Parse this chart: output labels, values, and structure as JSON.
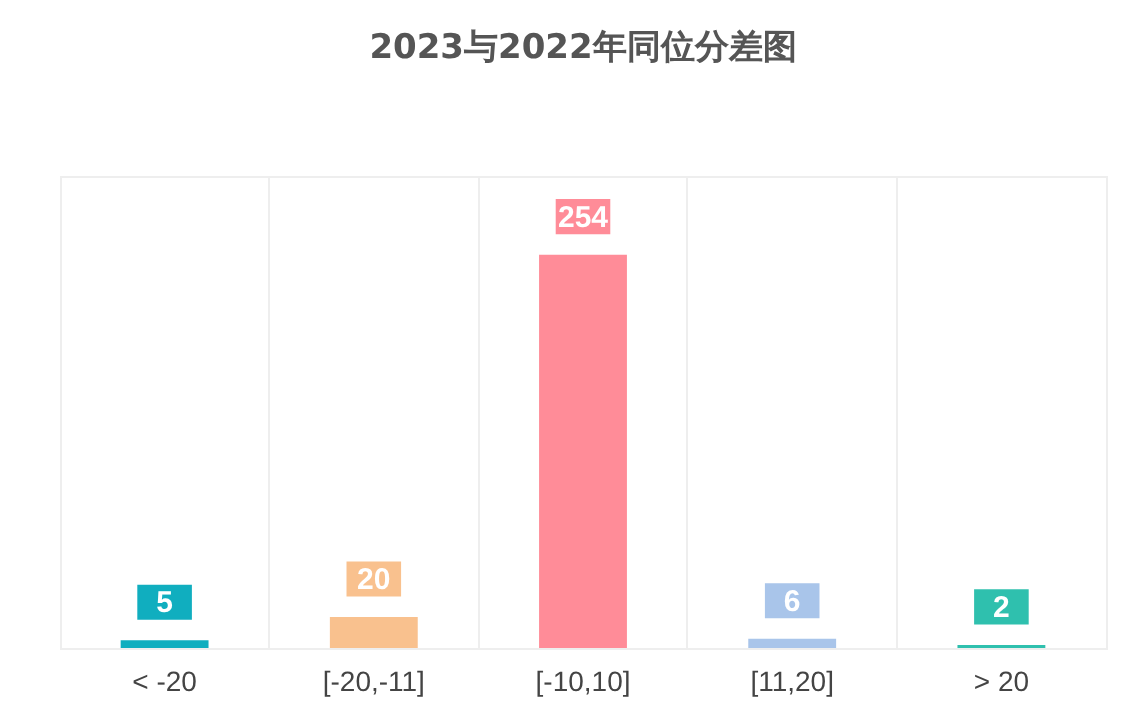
{
  "chart_data": {
    "type": "bar",
    "title": "2023与2022年同位分差图",
    "categories": [
      "< -20",
      "[-20,-11]",
      "[-10,10]",
      "[11,20]",
      "> 20"
    ],
    "values": [
      5,
      20,
      254,
      6,
      2
    ],
    "colors": [
      "#10aebf",
      "#f9c18e",
      "#ff8c98",
      "#a9c5ea",
      "#2fc0ae"
    ],
    "data_labels": true,
    "grid": "x"
  }
}
